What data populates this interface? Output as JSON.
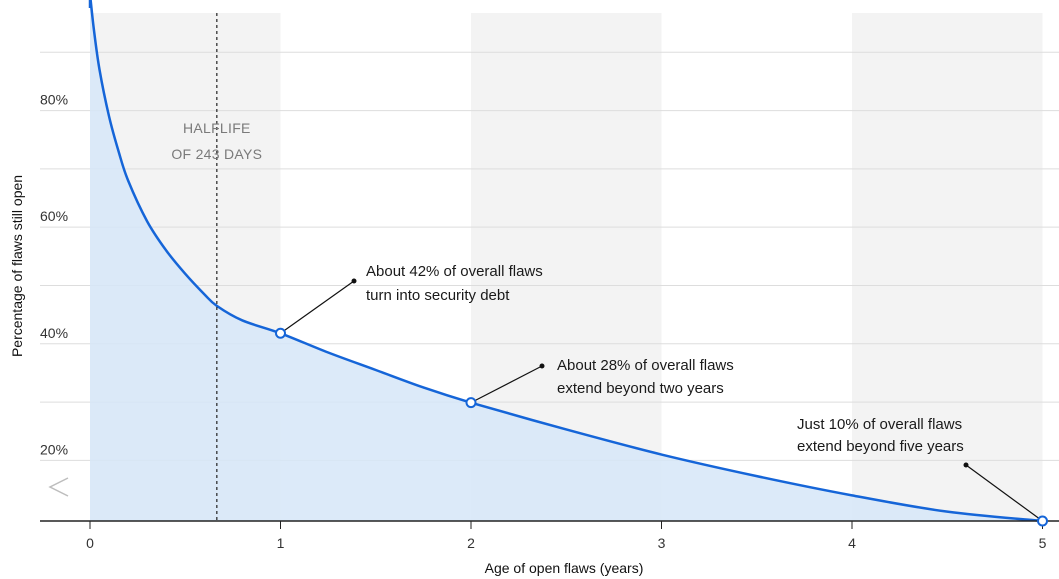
{
  "chart_data": {
    "type": "area",
    "title": "",
    "xlabel": "Age of open flaws (years)",
    "ylabel": "Percentage of flaws still open",
    "xlim": [
      0,
      5
    ],
    "ylim": [
      0,
      100
    ],
    "x_ticks": [
      "0",
      "1",
      "2",
      "3",
      "4",
      "5"
    ],
    "y_ticks": [
      {
        "value": 20,
        "label": "20%"
      },
      {
        "value": 40,
        "label": "40%"
      },
      {
        "value": 60,
        "label": "60%"
      },
      {
        "value": 80,
        "label": "80%"
      }
    ],
    "grid": true,
    "axis_break": true,
    "series": [
      {
        "x": [
          0,
          0.02,
          0.05,
          0.1,
          0.15,
          0.2,
          0.3,
          0.4,
          0.5,
          0.6,
          0.6658,
          0.8,
          1.0,
          1.25,
          1.5,
          1.75,
          2.0,
          2.5,
          3.0,
          3.5,
          4.0,
          4.5,
          5.0
        ],
        "y": [
          100,
          94,
          87,
          79,
          73,
          68,
          61,
          56,
          52,
          48.5,
          46.5,
          44,
          41.8,
          38.5,
          35.5,
          32.5,
          29.9,
          25.3,
          21,
          17.3,
          14,
          11.2,
          9.6
        ],
        "color": "#1565d8",
        "fill": "#d6e6f8"
      }
    ],
    "halflife": {
      "x": 0.6658,
      "label_line1": "HALFLIFE",
      "label_line2": "OF 243 DAYS"
    },
    "highlight_points": [
      {
        "x": 1,
        "y": 41.8
      },
      {
        "x": 2,
        "y": 29.9
      },
      {
        "x": 5,
        "y": 9.6
      }
    ],
    "annotations": [
      {
        "line1": "About 42% of overall flaws",
        "line2": "turn into security debt"
      },
      {
        "line1": "About 28% of overall flaws",
        "line2": "extend beyond two years"
      },
      {
        "line1": "Just 10% of overall flaws",
        "line2": "extend beyond five years"
      }
    ],
    "colors": {
      "line": "#1565d8",
      "area": "#d6e6f8",
      "band": "#f3f3f3",
      "grid": "#dddddd"
    }
  }
}
